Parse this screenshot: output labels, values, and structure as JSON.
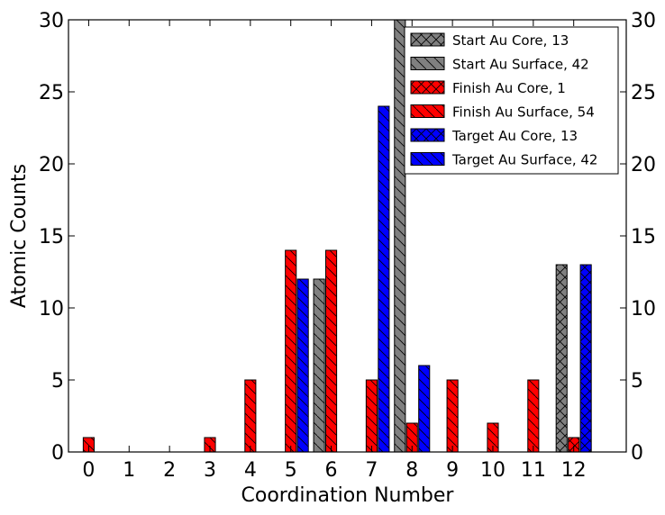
{
  "chart_data": {
    "type": "bar",
    "xlabel": "Coordination Number",
    "ylabel": "Atomic Counts",
    "ylim": [
      0,
      30
    ],
    "xlim": [
      -0.5,
      13.3
    ],
    "yticks": [
      0,
      5,
      10,
      15,
      20,
      25,
      30
    ],
    "categories": [
      "0",
      "1",
      "2",
      "3",
      "4",
      "5",
      "6",
      "7",
      "8",
      "9",
      "10",
      "11",
      "12"
    ],
    "grid": false,
    "legend_position": "top-right",
    "series": [
      {
        "name": "Start Au Core, 13",
        "color": "#808080",
        "hatch": "cross",
        "x": [
          11.7
        ],
        "values": [
          13
        ]
      },
      {
        "name": "Start Au Surface, 42",
        "color": "#808080",
        "hatch": "diagonal",
        "x": [
          5.7,
          7.7
        ],
        "values": [
          12,
          30
        ]
      },
      {
        "name": "Finish Au Core, 1",
        "color": "#ff0000",
        "hatch": "cross",
        "x": [
          12.0
        ],
        "values": [
          1
        ]
      },
      {
        "name": "Finish Au Surface, 54",
        "color": "#ff0000",
        "hatch": "diagonal",
        "x": [
          0.0,
          3.0,
          4.0,
          5.0,
          6.0,
          7.0,
          8.0,
          9.0,
          10.0,
          11.0
        ],
        "values": [
          1,
          1,
          5,
          14,
          14,
          5,
          2,
          5,
          2,
          5
        ]
      },
      {
        "name": "Target Au Core, 13",
        "color": "#0000ff",
        "hatch": "cross",
        "x": [
          12.3
        ],
        "values": [
          13
        ]
      },
      {
        "name": "Target Au Surface, 42",
        "color": "#0000ff",
        "hatch": "diagonal",
        "x": [
          5.3,
          7.3,
          8.3
        ],
        "values": [
          12,
          24,
          6
        ]
      }
    ]
  }
}
